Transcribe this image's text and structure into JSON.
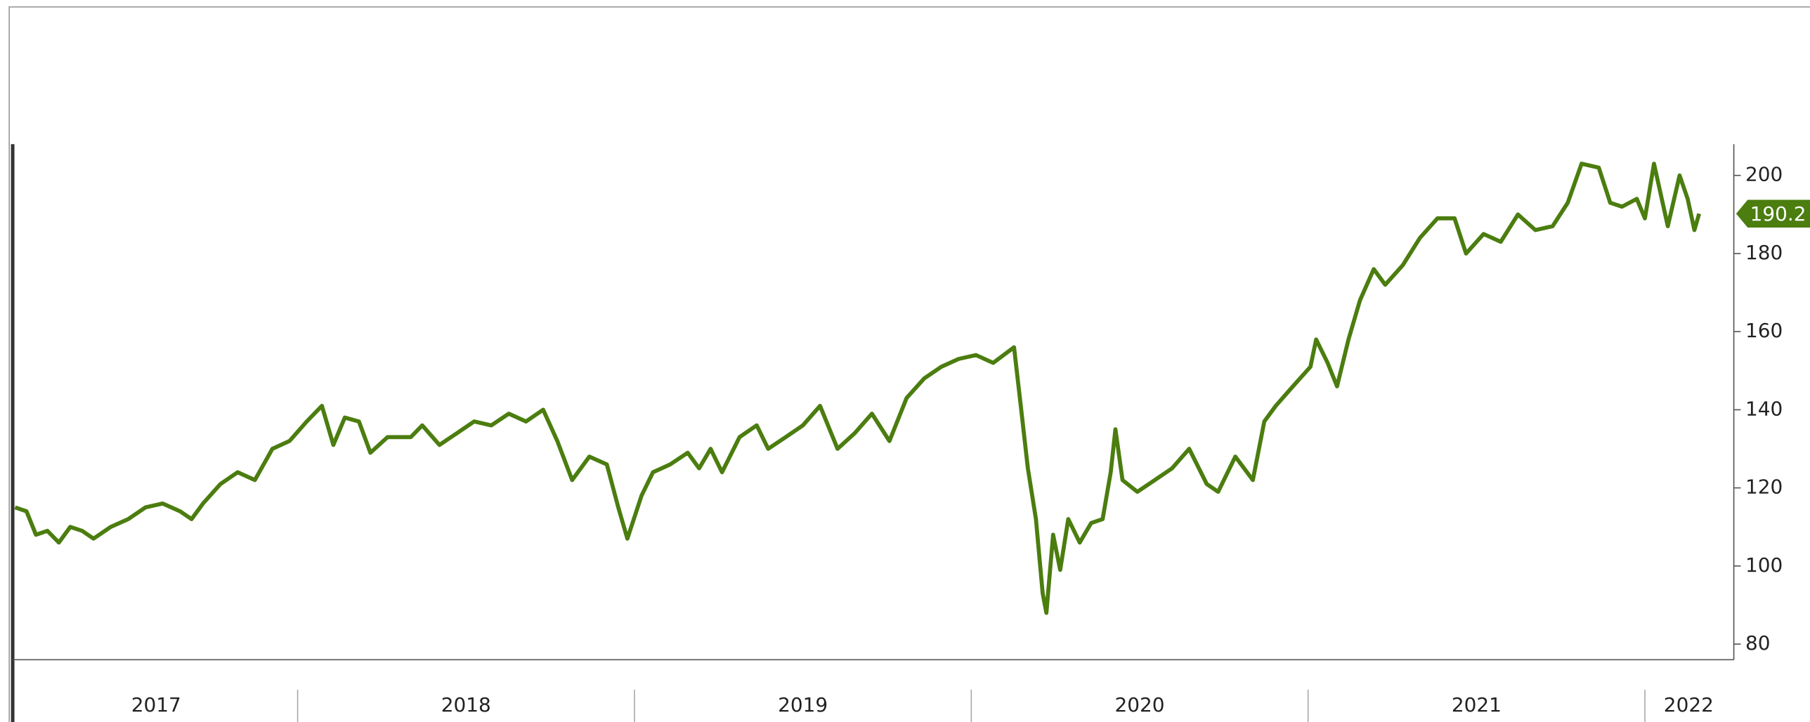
{
  "chart_data": {
    "type": "line",
    "color": "#4b7d0f",
    "x": [
      2017.161,
      2017.195,
      2017.223,
      2017.257,
      2017.291,
      2017.325,
      2017.36,
      2017.394,
      2017.445,
      2017.497,
      2017.548,
      2017.599,
      2017.651,
      2017.685,
      2017.719,
      2017.771,
      2017.822,
      2017.873,
      2017.925,
      2017.976,
      2018.027,
      2018.072,
      2018.106,
      2018.14,
      2018.182,
      2018.216,
      2018.267,
      2018.336,
      2018.37,
      2018.421,
      2018.473,
      2018.524,
      2018.575,
      2018.627,
      2018.678,
      2018.729,
      2018.771,
      2018.815,
      2018.866,
      2018.918,
      2018.952,
      2018.979,
      2019.021,
      2019.055,
      2019.106,
      2019.158,
      2019.192,
      2019.226,
      2019.26,
      2019.312,
      2019.363,
      2019.397,
      2019.449,
      2019.5,
      2019.551,
      2019.603,
      2019.654,
      2019.705,
      2019.757,
      2019.808,
      2019.86,
      2019.911,
      2019.962,
      2020.014,
      2020.065,
      2020.127,
      2020.147,
      2020.168,
      2020.192,
      2020.212,
      2020.223,
      2020.243,
      2020.264,
      2020.288,
      2020.322,
      2020.356,
      2020.39,
      2020.414,
      2020.428,
      2020.449,
      2020.493,
      2020.545,
      2020.596,
      2020.647,
      2020.699,
      2020.733,
      2020.784,
      2020.836,
      2020.87,
      2020.904,
      2020.955,
      2021.007,
      2021.024,
      2021.058,
      2021.086,
      2021.12,
      2021.154,
      2021.195,
      2021.229,
      2021.281,
      2021.332,
      2021.384,
      2021.435,
      2021.469,
      2021.521,
      2021.572,
      2021.623,
      2021.675,
      2021.726,
      2021.771,
      2021.812,
      2021.863,
      2021.897,
      2021.932,
      2021.976,
      2022.0,
      2022.027,
      2022.068,
      2022.103,
      2022.127,
      2022.147,
      2022.161
    ],
    "values": [
      115,
      114,
      108,
      109,
      106,
      110,
      109,
      107,
      110,
      112,
      115,
      116,
      114,
      112,
      116,
      121,
      124,
      122,
      130,
      132,
      137,
      141,
      131,
      138,
      137,
      129,
      133,
      133,
      136,
      131,
      134,
      137,
      136,
      139,
      137,
      140,
      132,
      122,
      128,
      126,
      115,
      107,
      118,
      124,
      126,
      129,
      125,
      130,
      124,
      133,
      136,
      130,
      133,
      136,
      141,
      130,
      134,
      139,
      132,
      143,
      148,
      151,
      153,
      154,
      152,
      156,
      141,
      125,
      112,
      93,
      88,
      108,
      99,
      112,
      106,
      111,
      112,
      124,
      135,
      122,
      119,
      122,
      125,
      130,
      121,
      119,
      128,
      122,
      137,
      141,
      146,
      151,
      158,
      152,
      146,
      158,
      168,
      176,
      172,
      177,
      184,
      189,
      189,
      180,
      185,
      183,
      190,
      186,
      187,
      193,
      203,
      202,
      193,
      192,
      194,
      189,
      203,
      187,
      200,
      194,
      186,
      190.2
    ],
    "last_value_label": "190.2",
    "xlim": [
      2017.154,
      2022.264
    ],
    "ylim": [
      76,
      208
    ],
    "xticks": [
      {
        "value": 2017.58,
        "label": "2017"
      },
      {
        "value": 2018.5,
        "label": "2018"
      },
      {
        "value": 2019.5,
        "label": "2019"
      },
      {
        "value": 2020.5,
        "label": "2020"
      },
      {
        "value": 2021.5,
        "label": "2021"
      },
      {
        "value": 2022.13,
        "label": "2022"
      }
    ],
    "year_boundaries": [
      2018,
      2019,
      2020,
      2021,
      2022
    ],
    "yticks": [
      80,
      100,
      120,
      140,
      160,
      180,
      200
    ]
  }
}
